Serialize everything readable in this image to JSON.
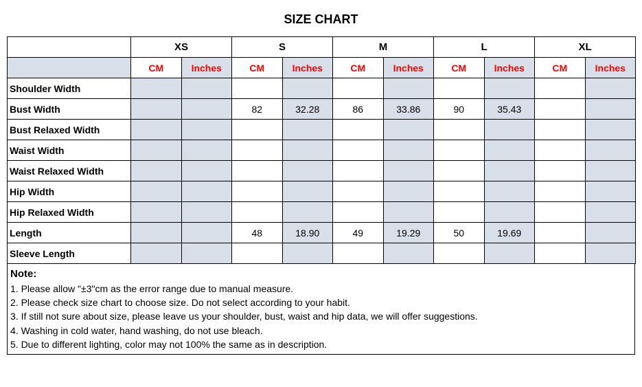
{
  "title": "SIZE CHART",
  "sizes": [
    "XS",
    "S",
    "M",
    "L",
    "XL"
  ],
  "units": [
    "CM",
    "Inches"
  ],
  "unit_color": "#ff0000",
  "shaded_bg": "#d8dfe8",
  "border_color": "#000000",
  "rows": [
    {
      "label": "Shoulder Width",
      "values": [
        "",
        "",
        "",
        "",
        "",
        "",
        "",
        "",
        "",
        ""
      ]
    },
    {
      "label": "Bust Width",
      "values": [
        "",
        "",
        "82",
        "32.28",
        "86",
        "33.86",
        "90",
        "35.43",
        "",
        ""
      ]
    },
    {
      "label": "Bust Relaxed Width",
      "values": [
        "",
        "",
        "",
        "",
        "",
        "",
        "",
        "",
        "",
        ""
      ]
    },
    {
      "label": "Waist Width",
      "values": [
        "",
        "",
        "",
        "",
        "",
        "",
        "",
        "",
        "",
        ""
      ]
    },
    {
      "label": "Waist Relaxed Width",
      "values": [
        "",
        "",
        "",
        "",
        "",
        "",
        "",
        "",
        "",
        ""
      ]
    },
    {
      "label": "Hip Width",
      "values": [
        "",
        "",
        "",
        "",
        "",
        "",
        "",
        "",
        "",
        ""
      ]
    },
    {
      "label": "Hip Relaxed Width",
      "values": [
        "",
        "",
        "",
        "",
        "",
        "",
        "",
        "",
        "",
        ""
      ]
    },
    {
      "label": "Length",
      "values": [
        "",
        "",
        "48",
        "18.90",
        "49",
        "19.29",
        "50",
        "19.69",
        "",
        ""
      ]
    },
    {
      "label": "Sleeve Length",
      "values": [
        "",
        "",
        "",
        "",
        "",
        "",
        "",
        "",
        "",
        ""
      ]
    }
  ],
  "notes": {
    "title": "Note:",
    "items": [
      "1. Please allow \"±3\"cm as the error range due to manual measure.",
      "2. Please check size chart to choose size. Do not select according to your habit.",
      "3. If still not sure about size, please leave us your shoulder, bust, waist and hip data, we will offer suggestions.",
      "4. Washing in cold water, hand washing, do not use bleach.",
      "5. Due to different lighting, color may not 100% the same as in description."
    ]
  }
}
